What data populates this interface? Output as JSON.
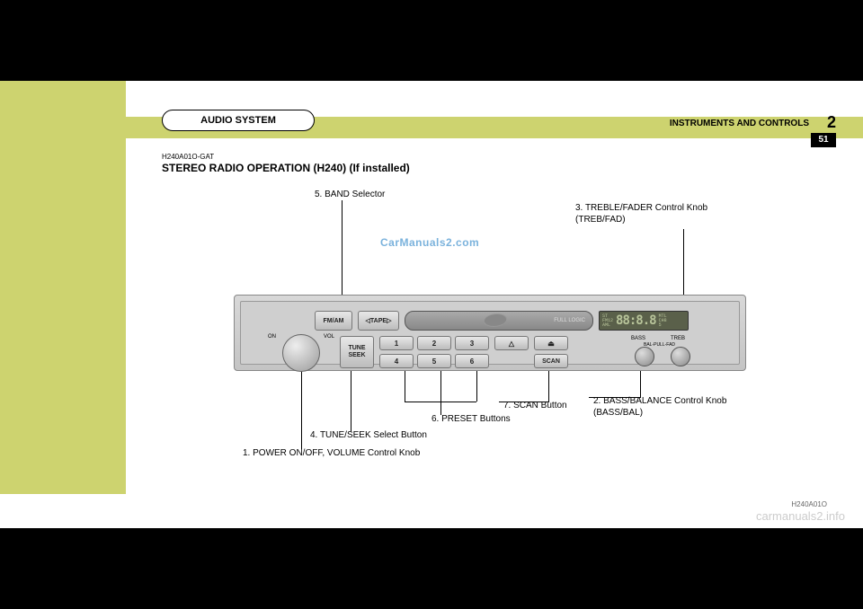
{
  "header": {
    "tab_label": "AUDIO SYSTEM",
    "section_label": "INSTRUMENTS AND CONTROLS",
    "chapter_number": "2",
    "page_number": "51"
  },
  "document": {
    "code": "H240A01O-GAT",
    "title": "STEREO RADIO OPERATION (H240) (If installed)",
    "figure_code": "H240A01O"
  },
  "callouts": {
    "band": "5. BAND Selector",
    "treble": "3.  TREBLE/FADER Control Knob (TREB/FAD)",
    "bass": "2. BASS/BALANCE Control Knob (BASS/BAL)",
    "scan": "7. SCAN Button",
    "preset": "6. PRESET Buttons",
    "tune": "4. TUNE/SEEK Select Button",
    "power": "1. POWER ON/OFF, VOLUME Control Knob"
  },
  "radio": {
    "fm_am": "FM/AM",
    "tape": "◁TAPE▷",
    "cassette_label": "FULL LOGIC",
    "display": {
      "left_labels": "ST\nFM12\nAML",
      "digits": "88:8.8",
      "right_labels": "MTL\nCH8\n5"
    },
    "on_label": "ON",
    "vol_label": "VOL",
    "tune_seek": "TUNE\nSEEK",
    "presets": [
      "1",
      "2",
      "3",
      "4",
      "5",
      "6"
    ],
    "scan": "SCAN",
    "eject": "⏏",
    "bass_label": "BASS",
    "treb_label": "TREB",
    "balfad_label": "BAL-PULL-FAD"
  },
  "watermarks": {
    "blue": "CarManuals2.com",
    "site": "carmanuals2.info"
  },
  "colors": {
    "accent": "#cdd36f",
    "black": "#000000",
    "radio_body": "#cfcfcf",
    "display_bg": "#5a604a",
    "display_fg": "#b8c49a",
    "watermark_blue": "#5a9fd4",
    "watermark_gray": "#cccccc"
  }
}
